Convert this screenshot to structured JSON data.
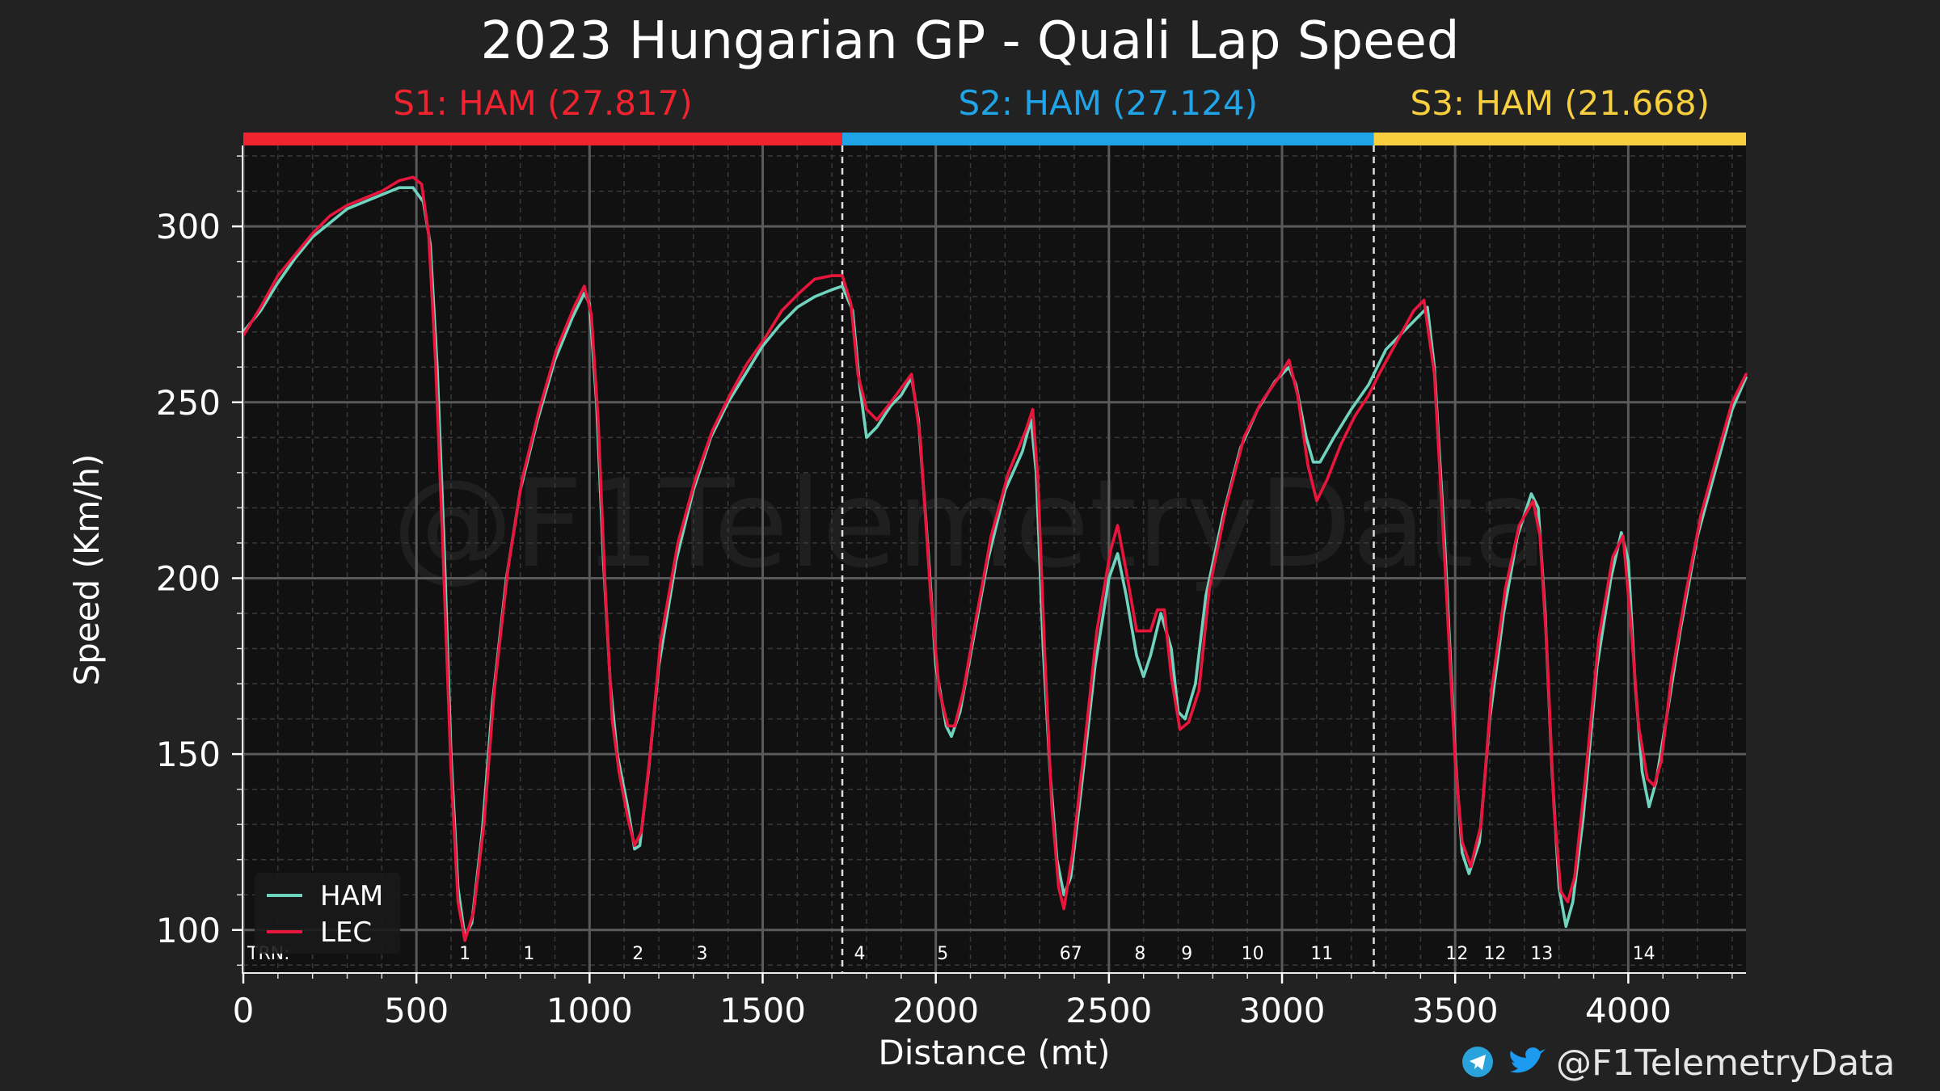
{
  "chart_data": {
    "type": "line",
    "title": "2023 Hungarian GP - Quali Lap Speed",
    "xlabel": "Distance (mt)",
    "ylabel": "Speed (Km/h)",
    "xlim": [
      0,
      4340
    ],
    "ylim": [
      88,
      323
    ],
    "xticks": [
      0,
      500,
      1000,
      1500,
      2000,
      2500,
      3000,
      3500,
      4000
    ],
    "yticks": [
      100,
      150,
      200,
      250,
      300
    ],
    "grid": true,
    "legend_position": "bottom-left",
    "watermark": "@F1TelemetryData",
    "sectors": [
      {
        "label": "S1: HAM (27.817)",
        "start": 0,
        "end": 1730,
        "color": "#f0232f"
      },
      {
        "label": "S2: HAM (27.124)",
        "start": 1730,
        "end": 3265,
        "color": "#20a4e8"
      },
      {
        "label": "S3: HAM (21.668)",
        "start": 3265,
        "end": 4340,
        "color": "#f7cf3f"
      }
    ],
    "turn_axis_label": "TRN:",
    "turns": [
      {
        "label": "1",
        "x": 640
      },
      {
        "label": "1",
        "x": 825
      },
      {
        "label": "2",
        "x": 1140
      },
      {
        "label": "3",
        "x": 1325
      },
      {
        "label": "4",
        "x": 1780
      },
      {
        "label": "5",
        "x": 2020
      },
      {
        "label": "67",
        "x": 2390
      },
      {
        "label": "8",
        "x": 2590
      },
      {
        "label": "9",
        "x": 2725
      },
      {
        "label": "10",
        "x": 2915
      },
      {
        "label": "11",
        "x": 3115
      },
      {
        "label": "12",
        "x": 3505
      },
      {
        "label": "12",
        "x": 3615
      },
      {
        "label": "13",
        "x": 3750
      },
      {
        "label": "14",
        "x": 4045
      }
    ],
    "series": [
      {
        "name": "HAM",
        "color": "#6fd3bd",
        "points": [
          [
            0,
            270
          ],
          [
            50,
            276
          ],
          [
            100,
            284
          ],
          [
            150,
            291
          ],
          [
            200,
            297
          ],
          [
            250,
            301
          ],
          [
            300,
            305
          ],
          [
            350,
            307
          ],
          [
            400,
            309
          ],
          [
            450,
            311
          ],
          [
            490,
            311
          ],
          [
            520,
            307
          ],
          [
            540,
            295
          ],
          [
            560,
            260
          ],
          [
            580,
            210
          ],
          [
            600,
            150
          ],
          [
            620,
            112
          ],
          [
            640,
            98
          ],
          [
            660,
            102
          ],
          [
            690,
            128
          ],
          [
            720,
            165
          ],
          [
            760,
            200
          ],
          [
            800,
            225
          ],
          [
            850,
            245
          ],
          [
            900,
            262
          ],
          [
            950,
            274
          ],
          [
            985,
            281
          ],
          [
            1000,
            278
          ],
          [
            1020,
            250
          ],
          [
            1040,
            205
          ],
          [
            1060,
            170
          ],
          [
            1080,
            150
          ],
          [
            1110,
            135
          ],
          [
            1130,
            123
          ],
          [
            1145,
            124
          ],
          [
            1170,
            145
          ],
          [
            1200,
            175
          ],
          [
            1250,
            205
          ],
          [
            1300,
            225
          ],
          [
            1350,
            240
          ],
          [
            1400,
            250
          ],
          [
            1450,
            258
          ],
          [
            1500,
            266
          ],
          [
            1550,
            272
          ],
          [
            1600,
            277
          ],
          [
            1650,
            280
          ],
          [
            1700,
            282
          ],
          [
            1730,
            283
          ],
          [
            1760,
            276
          ],
          [
            1780,
            255
          ],
          [
            1800,
            240
          ],
          [
            1830,
            243
          ],
          [
            1870,
            249
          ],
          [
            1900,
            252
          ],
          [
            1930,
            257
          ],
          [
            1950,
            245
          ],
          [
            1980,
            205
          ],
          [
            2000,
            175
          ],
          [
            2030,
            158
          ],
          [
            2045,
            155
          ],
          [
            2070,
            162
          ],
          [
            2100,
            178
          ],
          [
            2150,
            205
          ],
          [
            2200,
            225
          ],
          [
            2250,
            236
          ],
          [
            2275,
            245
          ],
          [
            2290,
            230
          ],
          [
            2310,
            180
          ],
          [
            2330,
            145
          ],
          [
            2350,
            120
          ],
          [
            2370,
            110
          ],
          [
            2390,
            115
          ],
          [
            2420,
            140
          ],
          [
            2460,
            175
          ],
          [
            2500,
            200
          ],
          [
            2525,
            207
          ],
          [
            2550,
            195
          ],
          [
            2580,
            178
          ],
          [
            2600,
            172
          ],
          [
            2620,
            178
          ],
          [
            2650,
            190
          ],
          [
            2680,
            180
          ],
          [
            2700,
            162
          ],
          [
            2720,
            160
          ],
          [
            2750,
            170
          ],
          [
            2780,
            195
          ],
          [
            2830,
            218
          ],
          [
            2880,
            237
          ],
          [
            2930,
            248
          ],
          [
            2980,
            256
          ],
          [
            3020,
            260
          ],
          [
            3040,
            255
          ],
          [
            3070,
            240
          ],
          [
            3090,
            233
          ],
          [
            3110,
            233
          ],
          [
            3150,
            240
          ],
          [
            3200,
            248
          ],
          [
            3250,
            255
          ],
          [
            3300,
            265
          ],
          [
            3350,
            270
          ],
          [
            3400,
            275
          ],
          [
            3420,
            277
          ],
          [
            3440,
            260
          ],
          [
            3470,
            210
          ],
          [
            3500,
            150
          ],
          [
            3520,
            122
          ],
          [
            3540,
            116
          ],
          [
            3570,
            125
          ],
          [
            3600,
            160
          ],
          [
            3640,
            190
          ],
          [
            3680,
            212
          ],
          [
            3720,
            224
          ],
          [
            3740,
            220
          ],
          [
            3760,
            190
          ],
          [
            3780,
            145
          ],
          [
            3800,
            112
          ],
          [
            3820,
            101
          ],
          [
            3840,
            108
          ],
          [
            3870,
            132
          ],
          [
            3910,
            175
          ],
          [
            3950,
            200
          ],
          [
            3980,
            213
          ],
          [
            4000,
            205
          ],
          [
            4020,
            170
          ],
          [
            4040,
            145
          ],
          [
            4060,
            135
          ],
          [
            4080,
            142
          ],
          [
            4110,
            160
          ],
          [
            4150,
            185
          ],
          [
            4200,
            212
          ],
          [
            4250,
            230
          ],
          [
            4300,
            248
          ],
          [
            4340,
            257
          ]
        ]
      },
      {
        "name": "LEC",
        "color": "#e8163c",
        "points": [
          [
            0,
            269
          ],
          [
            50,
            277
          ],
          [
            100,
            286
          ],
          [
            150,
            292
          ],
          [
            200,
            298
          ],
          [
            250,
            303
          ],
          [
            300,
            306
          ],
          [
            350,
            308
          ],
          [
            400,
            310
          ],
          [
            450,
            313
          ],
          [
            490,
            314
          ],
          [
            515,
            312
          ],
          [
            535,
            298
          ],
          [
            555,
            262
          ],
          [
            575,
            212
          ],
          [
            600,
            145
          ],
          [
            620,
            108
          ],
          [
            640,
            97
          ],
          [
            665,
            105
          ],
          [
            695,
            130
          ],
          [
            725,
            168
          ],
          [
            765,
            203
          ],
          [
            805,
            228
          ],
          [
            855,
            248
          ],
          [
            905,
            265
          ],
          [
            955,
            277
          ],
          [
            985,
            283
          ],
          [
            1005,
            275
          ],
          [
            1025,
            245
          ],
          [
            1045,
            198
          ],
          [
            1065,
            160
          ],
          [
            1085,
            145
          ],
          [
            1110,
            132
          ],
          [
            1130,
            124
          ],
          [
            1150,
            128
          ],
          [
            1175,
            150
          ],
          [
            1205,
            182
          ],
          [
            1255,
            210
          ],
          [
            1305,
            228
          ],
          [
            1355,
            242
          ],
          [
            1405,
            252
          ],
          [
            1455,
            261
          ],
          [
            1505,
            268
          ],
          [
            1555,
            276
          ],
          [
            1605,
            281
          ],
          [
            1650,
            285
          ],
          [
            1700,
            286
          ],
          [
            1730,
            286
          ],
          [
            1755,
            278
          ],
          [
            1775,
            258
          ],
          [
            1800,
            248
          ],
          [
            1830,
            245
          ],
          [
            1870,
            250
          ],
          [
            1900,
            254
          ],
          [
            1930,
            258
          ],
          [
            1955,
            240
          ],
          [
            1985,
            195
          ],
          [
            2010,
            168
          ],
          [
            2035,
            158
          ],
          [
            2055,
            158
          ],
          [
            2080,
            168
          ],
          [
            2110,
            185
          ],
          [
            2160,
            212
          ],
          [
            2210,
            230
          ],
          [
            2260,
            242
          ],
          [
            2280,
            248
          ],
          [
            2295,
            228
          ],
          [
            2315,
            178
          ],
          [
            2335,
            135
          ],
          [
            2355,
            112
          ],
          [
            2370,
            106
          ],
          [
            2395,
            122
          ],
          [
            2425,
            148
          ],
          [
            2465,
            185
          ],
          [
            2505,
            208
          ],
          [
            2525,
            215
          ],
          [
            2550,
            202
          ],
          [
            2580,
            185
          ],
          [
            2620,
            185
          ],
          [
            2640,
            191
          ],
          [
            2660,
            191
          ],
          [
            2680,
            172
          ],
          [
            2705,
            157
          ],
          [
            2730,
            159
          ],
          [
            2760,
            168
          ],
          [
            2790,
            197
          ],
          [
            2840,
            221
          ],
          [
            2890,
            240
          ],
          [
            2940,
            250
          ],
          [
            2990,
            257
          ],
          [
            3020,
            262
          ],
          [
            3045,
            252
          ],
          [
            3075,
            232
          ],
          [
            3100,
            222
          ],
          [
            3130,
            228
          ],
          [
            3170,
            238
          ],
          [
            3210,
            246
          ],
          [
            3250,
            252
          ],
          [
            3280,
            258
          ],
          [
            3330,
            267
          ],
          [
            3380,
            276
          ],
          [
            3410,
            279
          ],
          [
            3440,
            258
          ],
          [
            3470,
            205
          ],
          [
            3500,
            148
          ],
          [
            3520,
            125
          ],
          [
            3545,
            118
          ],
          [
            3575,
            130
          ],
          [
            3605,
            168
          ],
          [
            3645,
            197
          ],
          [
            3685,
            215
          ],
          [
            3725,
            222
          ],
          [
            3745,
            212
          ],
          [
            3765,
            180
          ],
          [
            3785,
            135
          ],
          [
            3805,
            111
          ],
          [
            3825,
            108
          ],
          [
            3845,
            115
          ],
          [
            3875,
            142
          ],
          [
            3915,
            183
          ],
          [
            3955,
            206
          ],
          [
            3985,
            212
          ],
          [
            4005,
            190
          ],
          [
            4030,
            158
          ],
          [
            4055,
            143
          ],
          [
            4075,
            141
          ],
          [
            4095,
            148
          ],
          [
            4125,
            172
          ],
          [
            4165,
            195
          ],
          [
            4210,
            218
          ],
          [
            4260,
            236
          ],
          [
            4300,
            250
          ],
          [
            4340,
            258
          ]
        ]
      }
    ]
  },
  "branding": {
    "handle": "@F1TelemetryData",
    "telegram_icon": "telegram-icon",
    "twitter_icon": "twitter-icon"
  }
}
